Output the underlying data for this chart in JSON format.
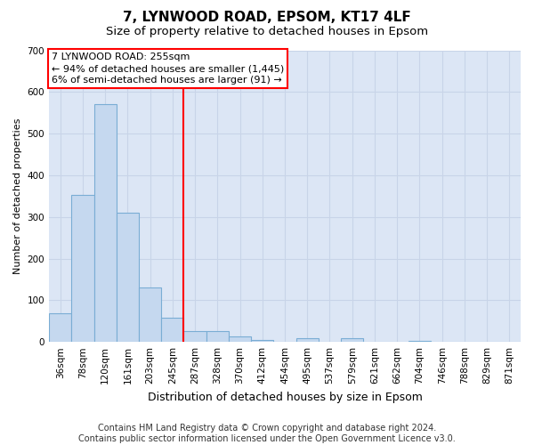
{
  "title": "7, LYNWOOD ROAD, EPSOM, KT17 4LF",
  "subtitle": "Size of property relative to detached houses in Epsom",
  "xlabel": "Distribution of detached houses by size in Epsom",
  "ylabel": "Number of detached properties",
  "bar_labels": [
    "36sqm",
    "78sqm",
    "120sqm",
    "161sqm",
    "203sqm",
    "245sqm",
    "287sqm",
    "328sqm",
    "370sqm",
    "412sqm",
    "454sqm",
    "495sqm",
    "537sqm",
    "579sqm",
    "621sqm",
    "662sqm",
    "704sqm",
    "746sqm",
    "788sqm",
    "829sqm",
    "871sqm"
  ],
  "bar_values": [
    68,
    352,
    570,
    311,
    130,
    58,
    27,
    25,
    13,
    4,
    0,
    8,
    0,
    8,
    0,
    0,
    2,
    0,
    0,
    0,
    0
  ],
  "bar_color": "#c5d8ef",
  "bar_edgecolor": "#7aadd4",
  "property_line_label": "7 LYNWOOD ROAD: 255sqm",
  "annotation_line1": "← 94% of detached houses are smaller (1,445)",
  "annotation_line2": "6% of semi-detached houses are larger (91) →",
  "annotation_box_color": "white",
  "annotation_box_edgecolor": "red",
  "vline_color": "red",
  "vline_x_idx": 5.5,
  "ylim": [
    0,
    700
  ],
  "yticks": [
    0,
    100,
    200,
    300,
    400,
    500,
    600,
    700
  ],
  "grid_color": "#c8d4e8",
  "bg_color": "#dce6f5",
  "footer": "Contains HM Land Registry data © Crown copyright and database right 2024.\nContains public sector information licensed under the Open Government Licence v3.0.",
  "title_fontsize": 11,
  "subtitle_fontsize": 9.5,
  "footer_fontsize": 7,
  "ylabel_fontsize": 8,
  "xlabel_fontsize": 9,
  "annotation_fontsize": 8,
  "tick_fontsize": 7.5
}
